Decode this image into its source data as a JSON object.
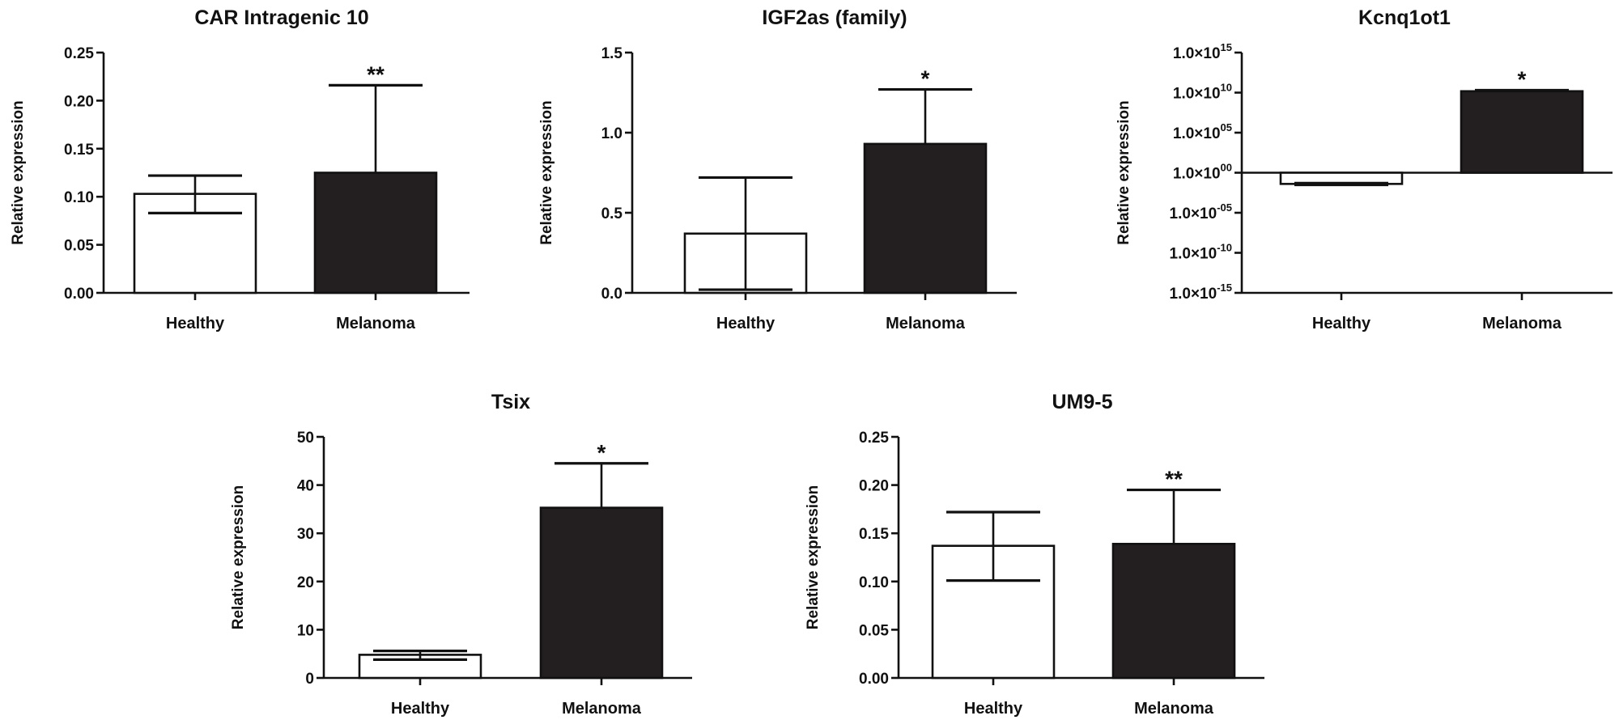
{
  "chart_data": [
    {
      "type": "bar",
      "title": "CAR Intragenic 10",
      "ylabel": "Relative expression",
      "categories": [
        "Healthy",
        "Melanoma"
      ],
      "values": [
        0.103,
        0.125
      ],
      "error_low": [
        0.083,
        null
      ],
      "error_high": [
        0.122,
        0.216
      ],
      "significance": [
        "",
        "**"
      ],
      "ylim": [
        0,
        0.25
      ],
      "yscale": "linear",
      "yticks": [
        "0.00",
        "0.05",
        "0.10",
        "0.15",
        "0.20",
        "0.25"
      ],
      "bar_colors": [
        "#ffffff",
        "#231f20"
      ]
    },
    {
      "type": "bar",
      "title": "IGF2as (family)",
      "ylabel": "Relative expression",
      "categories": [
        "Healthy",
        "Melanoma"
      ],
      "values": [
        0.37,
        0.93
      ],
      "error_low": [
        0.02,
        null
      ],
      "error_high": [
        0.72,
        1.27
      ],
      "significance": [
        "",
        "*"
      ],
      "ylim": [
        0,
        1.5
      ],
      "yscale": "linear",
      "yticks": [
        "0.0",
        "0.5",
        "1.0",
        "1.5"
      ],
      "bar_colors": [
        "#ffffff",
        "#231f20"
      ]
    },
    {
      "type": "bar",
      "title": "Kcnq1ot1",
      "ylabel": "Relative expression",
      "categories": [
        "Healthy",
        "Melanoma"
      ],
      "values": [
        0.04,
        15000000000.0
      ],
      "error_low": [
        0.03,
        null
      ],
      "error_high": [
        0.05,
        20000000000.0
      ],
      "significance": [
        "",
        "*"
      ],
      "ylim": [
        1e-15,
        1000000000000000.0
      ],
      "yscale": "log",
      "yticks": [
        {
          "base": "1.0×10",
          "exp": "-15"
        },
        {
          "base": "1.0×10",
          "exp": "-10"
        },
        {
          "base": "1.0×10",
          "exp": "-05"
        },
        {
          "base": "1.0×10",
          "exp": "00"
        },
        {
          "base": "1.0×10",
          "exp": "05"
        },
        {
          "base": "1.0×10",
          "exp": "10"
        },
        {
          "base": "1.0×10",
          "exp": "15"
        }
      ],
      "bar_colors": [
        "#ffffff",
        "#231f20"
      ]
    },
    {
      "type": "bar",
      "title": "Tsix",
      "ylabel": "Relative expression",
      "categories": [
        "Healthy",
        "Melanoma"
      ],
      "values": [
        4.8,
        35.3
      ],
      "error_low": [
        3.8,
        null
      ],
      "error_high": [
        5.6,
        44.5
      ],
      "significance": [
        "",
        "*"
      ],
      "ylim": [
        0,
        50
      ],
      "yscale": "linear",
      "yticks": [
        "0",
        "10",
        "20",
        "30",
        "40",
        "50"
      ],
      "bar_colors": [
        "#ffffff",
        "#231f20"
      ]
    },
    {
      "type": "bar",
      "title": "UM9-5",
      "ylabel": "Relative expression",
      "categories": [
        "Healthy",
        "Melanoma"
      ],
      "values": [
        0.137,
        0.139
      ],
      "error_low": [
        0.101,
        null
      ],
      "error_high": [
        0.172,
        0.195
      ],
      "significance": [
        "",
        "**"
      ],
      "ylim": [
        0,
        0.25
      ],
      "yscale": "linear",
      "yticks": [
        "0.00",
        "0.05",
        "0.10",
        "0.15",
        "0.20",
        "0.25"
      ],
      "bar_colors": [
        "#ffffff",
        "#231f20"
      ]
    }
  ]
}
